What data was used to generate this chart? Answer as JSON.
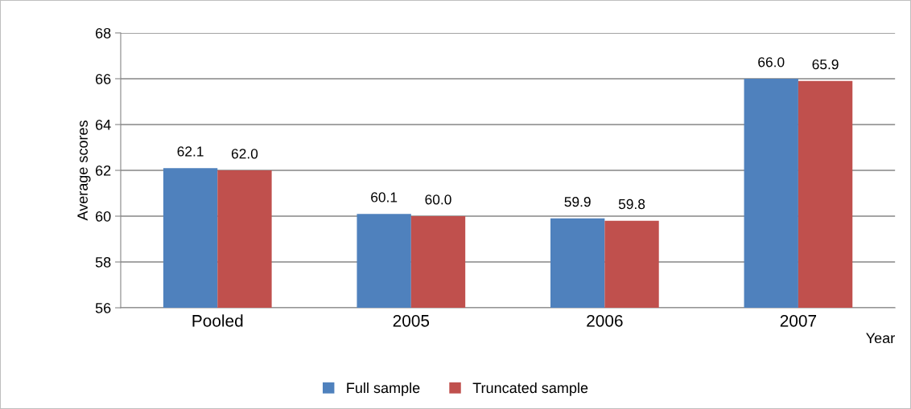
{
  "chart_data": {
    "type": "bar",
    "ylabel": "Average scores",
    "xlabel": "Year",
    "categories": [
      "Pooled",
      "2005",
      "2006",
      "2007"
    ],
    "series": [
      {
        "name": "Full sample",
        "color": "#4f81bd",
        "values": [
          62.1,
          60.1,
          59.9,
          66.0
        ],
        "value_labels": [
          "62.1",
          "60.1",
          "59.9",
          "66.0"
        ]
      },
      {
        "name": "Truncated sample",
        "color": "#c0504d",
        "values": [
          62.0,
          60.0,
          59.8,
          65.9
        ],
        "value_labels": [
          "62.0",
          "60.0",
          "59.8",
          "65.9"
        ]
      }
    ],
    "ylim": [
      56,
      68
    ],
    "yticks": [
      56,
      58,
      60,
      62,
      64,
      66,
      68
    ],
    "grid": "y",
    "legend": "bottom"
  }
}
